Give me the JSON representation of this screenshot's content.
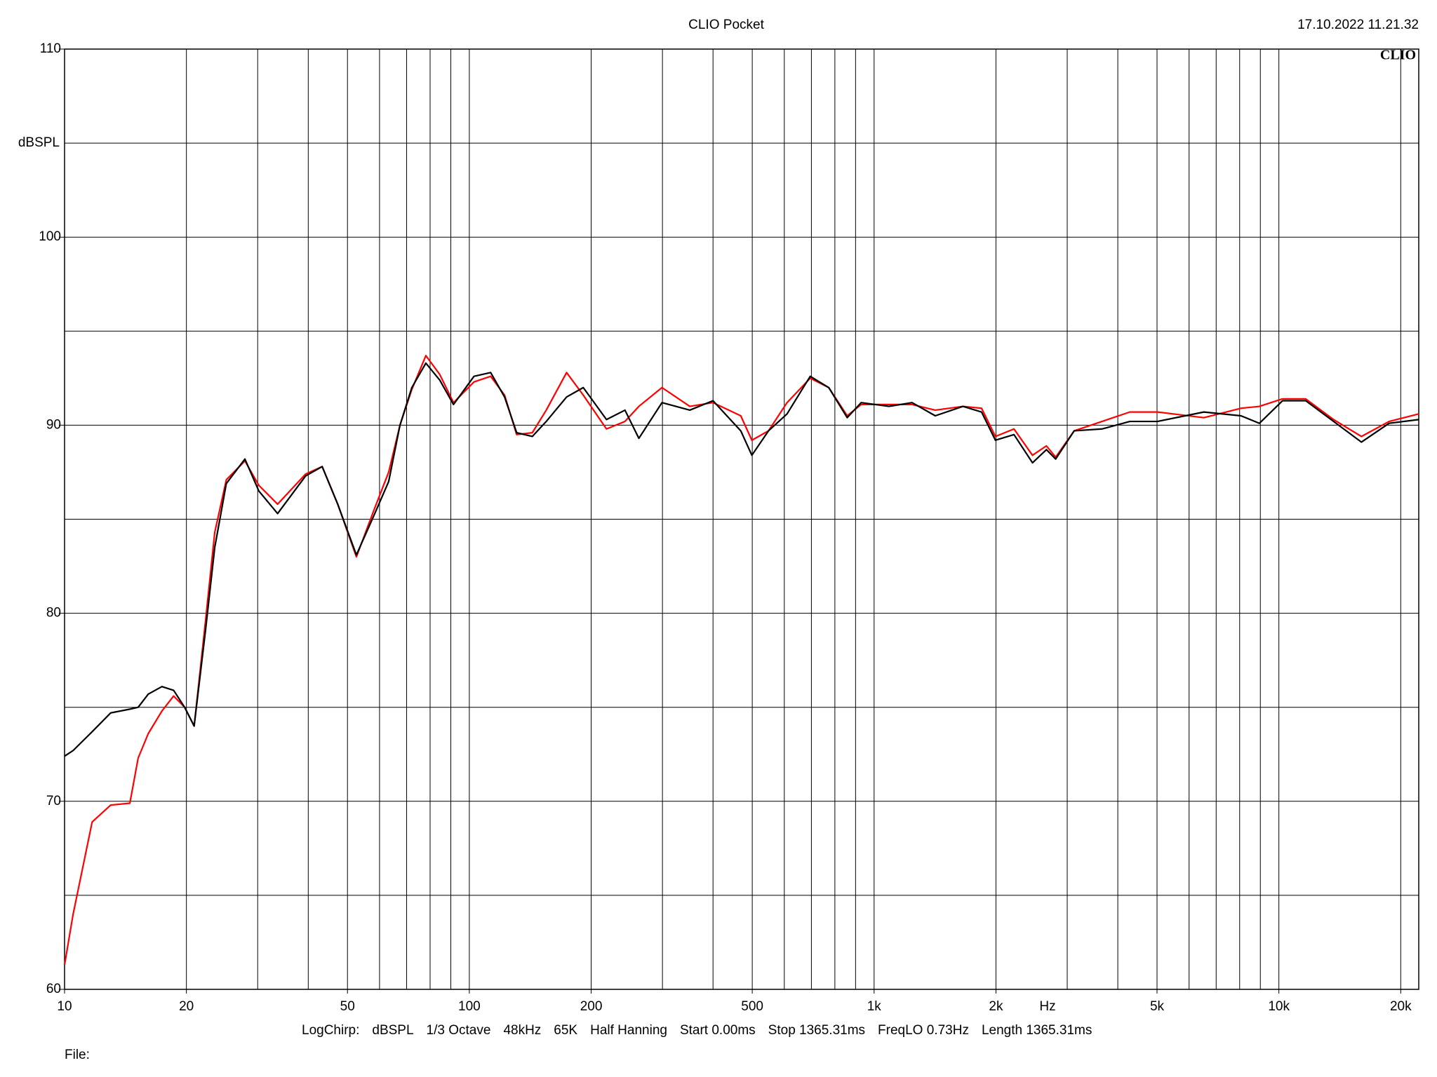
{
  "chart_data": {
    "type": "line",
    "title": "CLIO Pocket",
    "timestamp": "17.10.2022 11.21.32",
    "logo": "CLIO",
    "ylabel": "dBSPL",
    "xlabel": "Hz",
    "settings": [
      "LogChirp:",
      "dBSPL",
      "1/3 Octave",
      "48kHz",
      "65K",
      "Half Hanning",
      "Start 0.00ms",
      "Stop 1365.31ms",
      "FreqLO 0.73Hz",
      "Length 1365.31ms"
    ],
    "file_label": "File:",
    "xscale": "log",
    "grid": true,
    "xlim": [
      10,
      22160
    ],
    "ylim": [
      60,
      110
    ],
    "xticks": [
      10,
      20,
      50,
      100,
      200,
      500,
      {
        "value": 1000,
        "label": "1k"
      },
      {
        "value": 2000,
        "label": "2k"
      },
      {
        "value": 5000,
        "label": "5k"
      },
      {
        "value": 10000,
        "label": "10k"
      },
      {
        "value": 20000,
        "label": "20k"
      }
    ],
    "xminorticks": [
      30,
      40,
      60,
      70,
      80,
      90,
      300,
      400,
      600,
      700,
      800,
      900,
      3000,
      4000,
      6000,
      7000,
      8000,
      9000
    ],
    "yticks": [
      60,
      70,
      80,
      90,
      100,
      110
    ],
    "yminorticks": [
      65,
      75,
      85,
      95,
      105
    ],
    "x": [
      10,
      10.5,
      11.7,
      13.0,
      14.5,
      15.2,
      16.1,
      17.4,
      18.6,
      19.8,
      20.9,
      22.3,
      23.5,
      25.1,
      27.9,
      30.2,
      33.6,
      39.4,
      43.3,
      47.3,
      52.6,
      58.4,
      63.2,
      67.4,
      72.1,
      78.1,
      84.5,
      91.4,
      102.7,
      112.9,
      122.2,
      130.9,
      143.1,
      154.9,
      173.9,
      191.2,
      218.2,
      242.4,
      262.3,
      299.2,
      350.5,
      399.9,
      468.4,
      498.9,
      548.4,
      609.4,
      695.3,
      772.6,
      858.2,
      929.0,
      1088,
      1241,
      1416,
      1658,
      1843,
      1994,
      2216,
      2462,
      2665,
      2809,
      3121,
      3656,
      4282,
      5014,
      6526,
      8058,
      8952,
      10210,
      11650,
      13650,
      15990,
      18720,
      22160
    ],
    "series": [
      {
        "color": "#000000",
        "values": [
          72.4,
          72.7,
          73.7,
          74.7,
          74.9,
          75.0,
          75.7,
          76.1,
          75.9,
          75.0,
          74.0,
          79.1,
          83.5,
          86.9,
          88.2,
          86.5,
          85.3,
          87.3,
          87.8,
          85.8,
          83.1,
          85.3,
          87.0,
          90.0,
          92.0,
          93.3,
          92.4,
          91.1,
          92.6,
          92.8,
          91.5,
          89.6,
          89.4,
          90.2,
          91.5,
          92.0,
          90.3,
          90.8,
          89.3,
          91.2,
          90.8,
          91.3,
          89.7,
          88.4,
          89.7,
          90.6,
          92.6,
          92.0,
          90.4,
          91.2,
          91.0,
          91.2,
          90.5,
          91.0,
          90.7,
          89.2,
          89.5,
          88.0,
          88.7,
          88.2,
          89.7,
          89.8,
          90.2,
          90.2,
          90.7,
          90.5,
          90.1,
          91.3,
          91.3,
          90.2,
          89.1,
          90.1,
          90.3
        ]
      },
      {
        "color": "#ff0000",
        "values": [
          61.3,
          64.0,
          68.9,
          69.8,
          69.9,
          72.3,
          73.6,
          74.8,
          75.6,
          75.0,
          74.0,
          79.6,
          84.3,
          87.1,
          88.1,
          86.8,
          85.8,
          87.4,
          87.8,
          85.8,
          83.0,
          85.6,
          87.5,
          90.0,
          91.9,
          93.7,
          92.7,
          91.2,
          92.3,
          92.6,
          91.6,
          89.5,
          89.6,
          90.8,
          92.8,
          91.6,
          89.8,
          90.2,
          91.0,
          92.0,
          91.0,
          91.2,
          90.5,
          89.2,
          89.7,
          91.2,
          92.5,
          92.0,
          90.5,
          91.1,
          91.1,
          91.1,
          90.8,
          91.0,
          90.9,
          89.4,
          89.8,
          88.4,
          88.9,
          88.3,
          89.7,
          90.2,
          90.7,
          90.7,
          90.4,
          90.9,
          91.0,
          91.4,
          91.4,
          90.3,
          89.4,
          90.2,
          90.6
        ]
      }
    ]
  }
}
